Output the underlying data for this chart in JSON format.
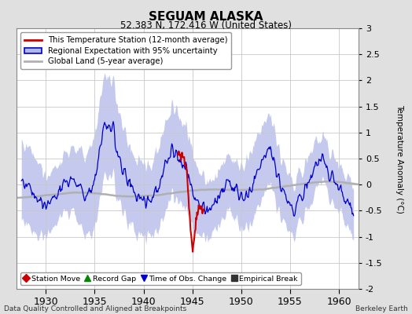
{
  "title": "SEGUAM ALASKA",
  "subtitle": "52.383 N, 172.416 W (United States)",
  "xlabel_left": "Data Quality Controlled and Aligned at Breakpoints",
  "xlabel_right": "Berkeley Earth",
  "ylabel": "Temperature Anomaly (°C)",
  "xlim": [
    1927.0,
    1962.0
  ],
  "ylim": [
    -2.0,
    3.0
  ],
  "yticks": [
    -2,
    -1.5,
    -1,
    -0.5,
    0,
    0.5,
    1,
    1.5,
    2,
    2.5,
    3
  ],
  "xticks": [
    1930,
    1935,
    1940,
    1945,
    1950,
    1955,
    1960
  ],
  "bg_color": "#e0e0e0",
  "plot_bg_color": "#ffffff",
  "grid_color": "#c8c8c8",
  "regional_line_color": "#0000cc",
  "regional_fill_color": "#b0b8e8",
  "station_line_color": "#cc0000",
  "global_line_color": "#b0b0b0",
  "legend_box_color": "#ffffff",
  "bottom_legend_items": [
    {
      "label": "Station Move",
      "color": "#cc0000",
      "marker": "D"
    },
    {
      "label": "Record Gap",
      "color": "#008800",
      "marker": "^"
    },
    {
      "label": "Time of Obs. Change",
      "color": "#0000cc",
      "marker": "v"
    },
    {
      "label": "Empirical Break",
      "color": "#333333",
      "marker": "s"
    }
  ]
}
